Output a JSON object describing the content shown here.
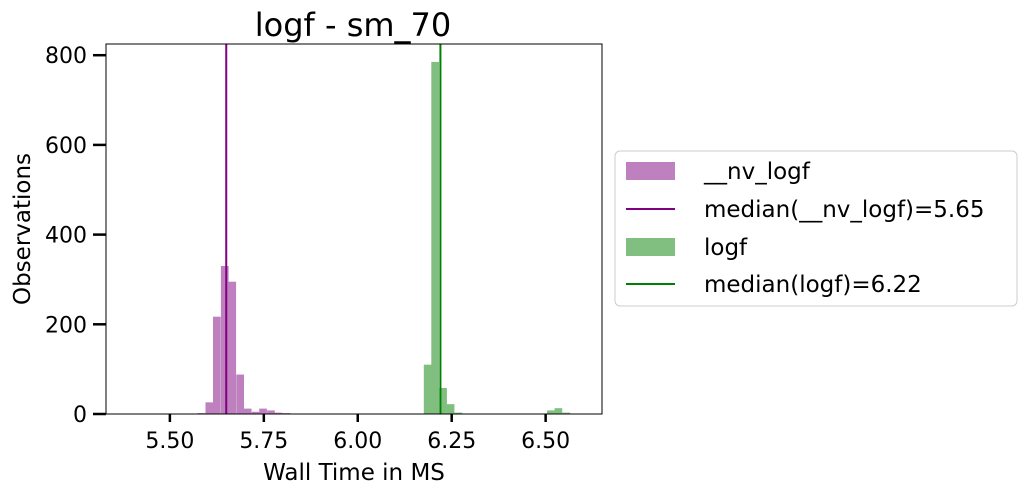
{
  "chart_data": {
    "type": "bar",
    "subtype": "histogram",
    "title": "logf - sm_70",
    "xlabel": "Wall Time in MS",
    "ylabel": "Observations",
    "xlim": [
      5.33,
      6.65
    ],
    "ylim": [
      0,
      825
    ],
    "xticks": [
      5.5,
      5.75,
      6.0,
      6.25,
      6.5
    ],
    "xtick_labels": [
      "5.50",
      "5.75",
      "6.00",
      "6.25",
      "6.50"
    ],
    "yticks": [
      0,
      200,
      400,
      600,
      800
    ],
    "ytick_labels": [
      "0",
      "200",
      "400",
      "600",
      "800"
    ],
    "bin_width": 0.0205,
    "grid": false,
    "legend_position": "outside-right",
    "series": [
      {
        "name": "__nv_logf",
        "color": "#bf80bf",
        "bins": [
          {
            "x": 5.584,
            "count": 2
          },
          {
            "x": 5.605,
            "count": 26
          },
          {
            "x": 5.625,
            "count": 217
          },
          {
            "x": 5.646,
            "count": 330
          },
          {
            "x": 5.666,
            "count": 295
          },
          {
            "x": 5.687,
            "count": 88
          },
          {
            "x": 5.707,
            "count": 12
          },
          {
            "x": 5.728,
            "count": 5
          },
          {
            "x": 5.748,
            "count": 12
          },
          {
            "x": 5.769,
            "count": 8
          },
          {
            "x": 5.789,
            "count": 3
          },
          {
            "x": 5.81,
            "count": 2
          },
          {
            "x": 5.83,
            "count": 1
          },
          {
            "x": 5.851,
            "count": 1
          }
        ]
      },
      {
        "name": "median(__nv_logf)=5.65",
        "type": "vline",
        "value": 5.65,
        "color": "#800080"
      },
      {
        "name": "logf",
        "color": "#80bf80",
        "bins": [
          {
            "x": 6.186,
            "count": 110
          },
          {
            "x": 6.206,
            "count": 785
          },
          {
            "x": 6.227,
            "count": 58
          },
          {
            "x": 6.247,
            "count": 22
          },
          {
            "x": 6.268,
            "count": 3
          },
          {
            "x": 6.288,
            "count": 1
          },
          {
            "x": 6.514,
            "count": 8
          },
          {
            "x": 6.534,
            "count": 13
          },
          {
            "x": 6.555,
            "count": 3
          }
        ]
      },
      {
        "name": "median(logf)=6.22",
        "type": "vline",
        "value": 6.22,
        "color": "#008000"
      }
    ]
  }
}
